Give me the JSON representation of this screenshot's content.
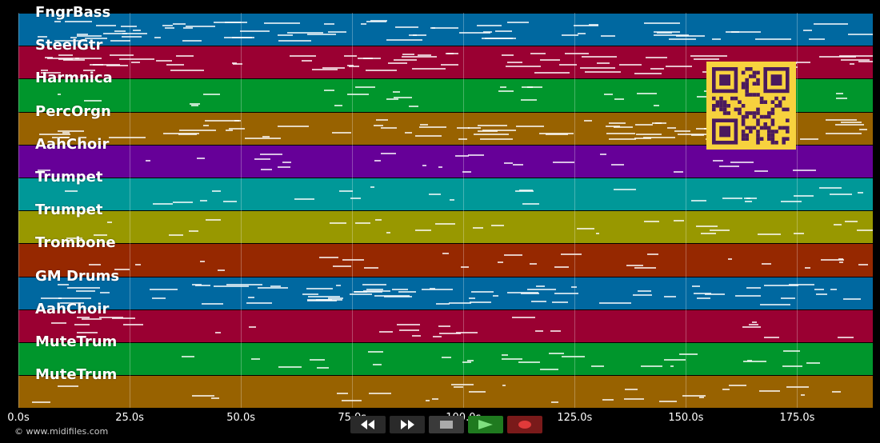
{
  "tracks": [
    {
      "name": "FngrBass",
      "color": "#0068a0"
    },
    {
      "name": "SteelGtr",
      "color": "#9a0032"
    },
    {
      "name": "Harmnica",
      "color": "#00962c"
    },
    {
      "name": "PercOrgn",
      "color": "#986200"
    },
    {
      "name": "AahChoir",
      "color": "#660098"
    },
    {
      "name": "Trumpet",
      "color": "#009898"
    },
    {
      "name": "Trumpet",
      "color": "#989800"
    },
    {
      "name": "Trombone",
      "color": "#962800"
    },
    {
      "name": "GM Drums",
      "color": "#0068a0"
    },
    {
      "name": "AahChoir",
      "color": "#9a0032"
    },
    {
      "name": "MuteTrum",
      "color": "#00962c"
    },
    {
      "name": "MuteTrum",
      "color": "#986200"
    }
  ],
  "time_axis": {
    "ticks": [
      "0.0s",
      "25.0s",
      "50.0s",
      "75.0s",
      "100.0s",
      "125.0s",
      "150.0s",
      "175.0s"
    ],
    "tick_values": [
      0,
      25,
      50,
      75,
      100,
      125,
      150,
      175
    ],
    "max_seconds": 192
  },
  "credit": "© www.midifiles.com",
  "controls": [
    {
      "name": "rewind-button",
      "icon": "rewind-icon",
      "color": "#2a2a2a"
    },
    {
      "name": "fast-forward-button",
      "icon": "fast-forward-icon",
      "color": "#2a2a2a"
    },
    {
      "name": "stop-button",
      "icon": "stop-icon",
      "color": "#3a3a3a"
    },
    {
      "name": "play-button",
      "icon": "play-icon",
      "color": "#1f7a1f"
    },
    {
      "name": "record-button",
      "icon": "record-icon",
      "color": "#7a1a1a"
    }
  ],
  "qr_icon": "qr-code-icon"
}
